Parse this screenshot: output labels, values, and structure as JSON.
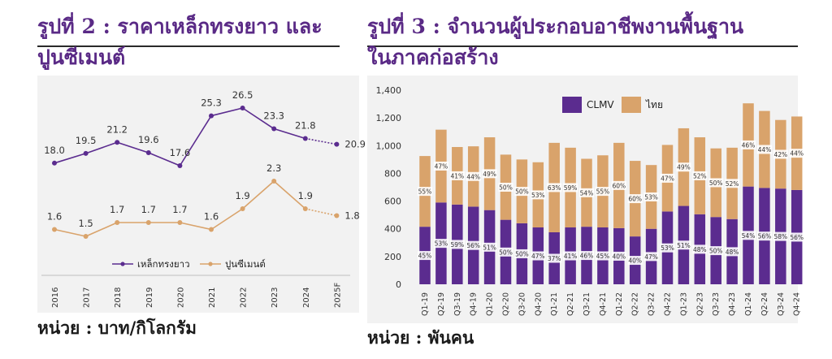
{
  "left_panel": {
    "title_line1": "รูปที่ 2 : ราคาเหล็กทรงยาว และ",
    "title_line2": "ปูนซีเมนต์",
    "unit_note": "หน่วย : บาท/กิโลกรัม"
  },
  "right_panel": {
    "title_line1": "รูปที่ 3 : จำนวนผู้ประกอบอาชีพงานพื้นฐาน",
    "title_line2": "ในภาคก่อสร้าง",
    "unit_note": "หน่วย : พันคน"
  },
  "colors": {
    "steel": "#5b2c8f",
    "cement": "#d9a36b",
    "clmv": "#5b2c8f",
    "thai": "#d9a36b",
    "title": "#5a2a86"
  },
  "chart_data": [
    {
      "type": "line",
      "categories": [
        "2016",
        "2017",
        "2018",
        "2019",
        "2020",
        "2021",
        "2022",
        "2023",
        "2024",
        "2025F"
      ],
      "series": [
        {
          "name": "เหล็กทรงยาว",
          "values": [
            18.0,
            19.5,
            21.2,
            19.6,
            17.6,
            25.3,
            26.5,
            23.3,
            21.8,
            20.9
          ],
          "labels": [
            "18.0",
            "19.5",
            "21.2",
            "19.6",
            "17.6",
            "25.3",
            "26.5",
            "23.3",
            "21.8",
            "20.9"
          ]
        },
        {
          "name": "ปูนซีเมนต์",
          "values": [
            1.6,
            1.5,
            1.7,
            1.7,
            1.7,
            1.6,
            1.9,
            2.3,
            1.9,
            1.8
          ],
          "labels": [
            "1.6",
            "1.5",
            "1.7",
            "1.7",
            "1.7",
            "1.6",
            "1.9",
            "2.3",
            "1.9",
            "1.8"
          ]
        }
      ],
      "forecast_from_index": 8,
      "legend_position": "bottom",
      "grid": false
    },
    {
      "type": "bar",
      "stacked": true,
      "categories": [
        "Q1-19",
        "Q2-19",
        "Q3-19",
        "Q4-19",
        "Q1-20",
        "Q2-20",
        "Q3-20",
        "Q4-20",
        "Q1-21",
        "Q2-21",
        "Q3-21",
        "Q4-21",
        "Q1-22",
        "Q2-22",
        "Q3-22",
        "Q4-22",
        "Q1-23",
        "Q2-23",
        "Q3-23",
        "Q4-23",
        "Q1-24",
        "Q2-24",
        "Q3-24",
        "Q4-24"
      ],
      "series": [
        {
          "name": "CLMV",
          "values": [
            415,
            590,
            575,
            560,
            535,
            465,
            440,
            410,
            375,
            410,
            415,
            410,
            405,
            345,
            400,
            525,
            565,
            505,
            485,
            470,
            705,
            695,
            690,
            680
          ],
          "pct_labels": [
            "45%",
            "53%",
            "59%",
            "56%",
            "51%",
            "50%",
            "50%",
            "47%",
            "37%",
            "41%",
            "46%",
            "45%",
            "40%",
            "40%",
            "47%",
            "53%",
            "51%",
            "48%",
            "50%",
            "48%",
            "54%",
            "56%",
            "58%",
            "56%"
          ]
        },
        {
          "name": "ไทย",
          "values": [
            510,
            525,
            415,
            435,
            525,
            470,
            460,
            470,
            645,
            575,
            490,
            520,
            615,
            545,
            460,
            480,
            560,
            555,
            495,
            515,
            600,
            555,
            495,
            530
          ],
          "pct_labels": [
            "55%",
            "47%",
            "41%",
            "44%",
            "49%",
            "50%",
            "50%",
            "53%",
            "63%",
            "59%",
            "54%",
            "55%",
            "60%",
            "60%",
            "53%",
            "47%",
            "49%",
            "52%",
            "50%",
            "52%",
            "46%",
            "44%",
            "42%",
            "44%"
          ]
        }
      ],
      "yticks": [
        "0",
        "200",
        "400",
        "600",
        "800",
        "1,000",
        "1,200",
        "1,400"
      ],
      "ylim": [
        0,
        1400
      ],
      "legend_position": "top-left",
      "grid": false
    }
  ]
}
